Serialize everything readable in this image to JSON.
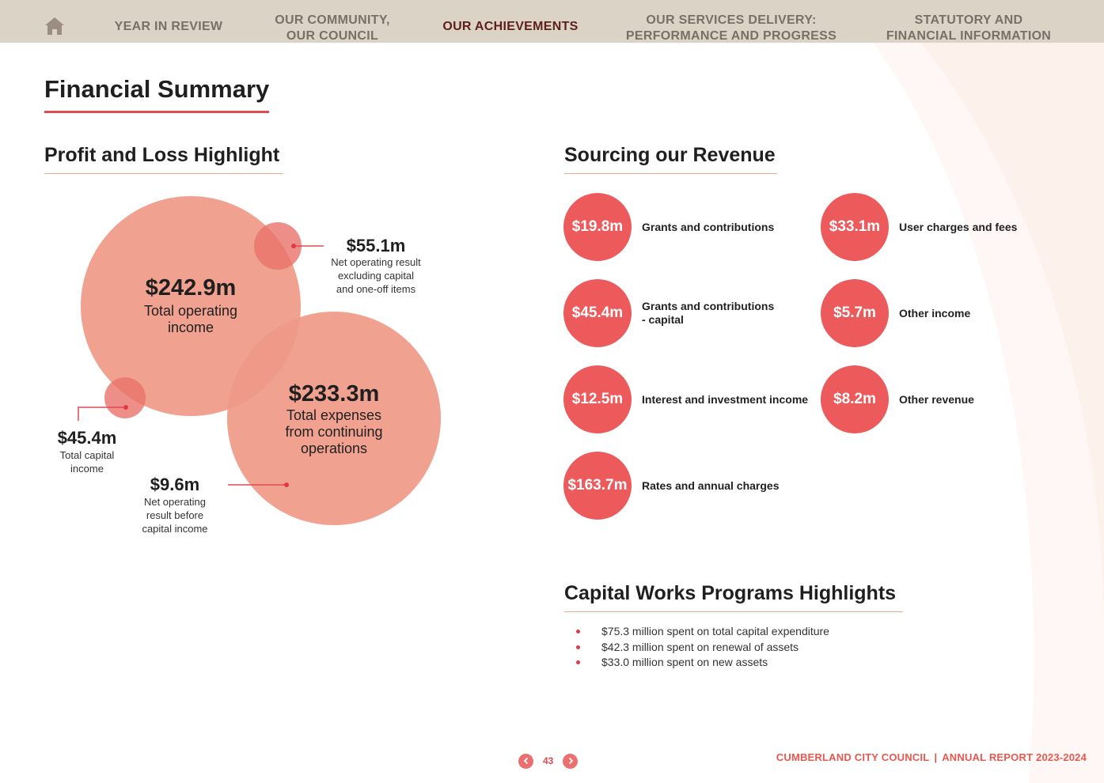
{
  "nav": {
    "items": [
      {
        "label": "YEAR IN REVIEW"
      },
      {
        "label": "OUR COMMUNITY,\nOUR COUNCIL"
      },
      {
        "label": "OUR ACHIEVEMENTS"
      },
      {
        "label": "OUR SERVICES DELIVERY:\nPERFORMANCE AND PROGRESS"
      },
      {
        "label": "STATUTORY AND\nFINANCIAL INFORMATION"
      }
    ],
    "active_index": 2,
    "home_icon": "home-icon"
  },
  "page_title": "Financial Summary",
  "profit_loss": {
    "title": "Profit and Loss Highlight",
    "items": [
      {
        "value": "$242.9m",
        "label": "Total operating\nincome"
      },
      {
        "value": "$233.3m",
        "label": "Total expenses\nfrom continuing\noperations"
      },
      {
        "value": "$55.1m",
        "label": "Net operating result\nexcluding capital\nand one-off items"
      },
      {
        "value": "$45.4m",
        "label": "Total capital\nincome"
      },
      {
        "value": "$9.6m",
        "label": "Net operating\nresult before\ncapital income"
      }
    ]
  },
  "revenue": {
    "title": "Sourcing our Revenue",
    "items": [
      {
        "value": "$19.8m",
        "label": "Grants and contributions"
      },
      {
        "value": "$33.1m",
        "label": "User charges and fees"
      },
      {
        "value": "$45.4m",
        "label": "Grants and contributions\n- capital"
      },
      {
        "value": "$5.7m",
        "label": "Other income"
      },
      {
        "value": "$12.5m",
        "label": "Interest and investment income"
      },
      {
        "value": "$8.2m",
        "label": "Other revenue"
      },
      {
        "value": "$163.7m",
        "label": "Rates and annual charges"
      }
    ]
  },
  "capital_works": {
    "title": "Capital Works Programs Highlights",
    "bullets": [
      "$75.3 million spent on total capital expenditure",
      "$42.3 million spent on renewal of assets",
      "$33.0 million spent on new assets"
    ]
  },
  "footer": {
    "page_number": "43",
    "org": "CUMBERLAND CITY COUNCIL",
    "report": "ANNUAL REPORT 2023-2024",
    "prev_icon": "chevron-left-icon",
    "next_icon": "chevron-right-icon"
  },
  "colors": {
    "accent": "#e04a52",
    "bubble": "#ef9a88",
    "revenue_circle": "#ec5a5c",
    "nav_bg": "#dcd3c7",
    "nav_active": "#5e1f1c"
  }
}
